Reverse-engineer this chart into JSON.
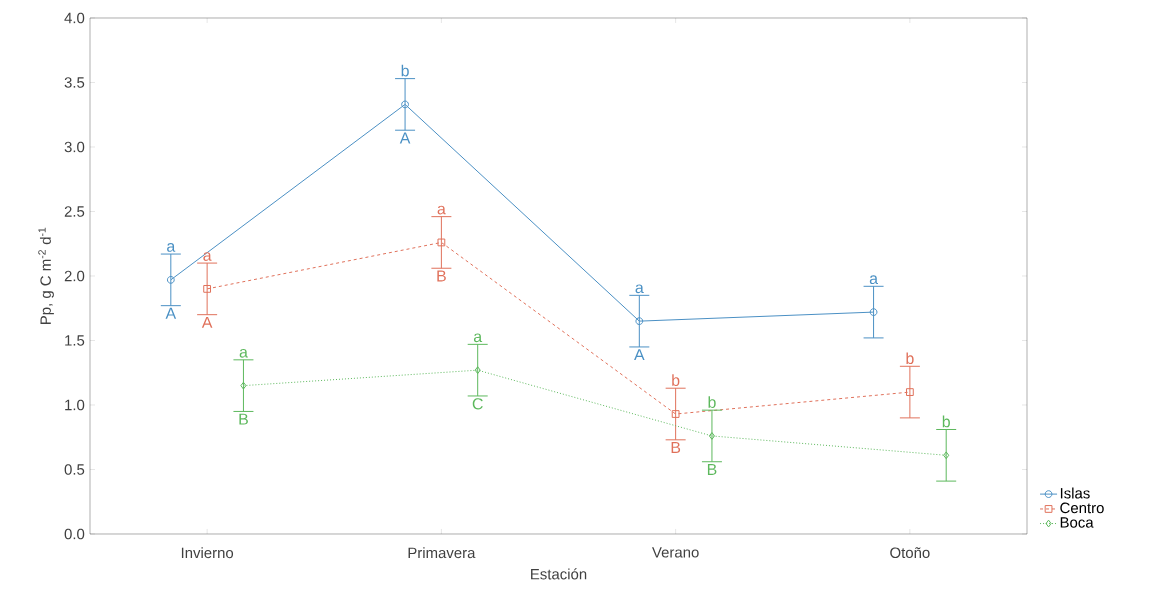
{
  "chart_data": {
    "type": "line",
    "xlabel": "Estación",
    "ylabel": "Pp, g C m$^{-2}$ d$^{-1}$",
    "categories": [
      "Invierno",
      "Primavera",
      "Verano",
      "Otoño"
    ],
    "ylim": [
      0,
      4
    ],
    "yticks": [
      {
        "value": 0,
        "label": "0.0"
      },
      {
        "value": 0.5,
        "label": "0.5"
      },
      {
        "value": 1,
        "label": "1.0"
      },
      {
        "value": 1.5,
        "label": "1.5"
      },
      {
        "value": 2,
        "label": "2.0"
      },
      {
        "value": 2.5,
        "label": "2.5"
      },
      {
        "value": 3,
        "label": "3.0"
      },
      {
        "value": 3.5,
        "label": "3.5"
      },
      {
        "value": 4,
        "label": "4.0"
      }
    ],
    "grid": false,
    "legend": "bottom right",
    "series": [
      {
        "name": "Islas",
        "color": "#4a90c4",
        "marker": "circle",
        "line_style": "solid",
        "values": [
          1.97,
          3.33,
          1.65,
          1.72
        ],
        "errors": [
          0.2,
          0.2,
          0.2,
          0.2
        ]
      },
      {
        "name": "Centro",
        "color": "#e0705a",
        "marker": "square",
        "line_style": "dashed",
        "values": [
          1.9,
          2.26,
          0.93,
          1.1
        ],
        "errors": [
          0.2,
          0.2,
          0.2,
          0.2
        ]
      },
      {
        "name": "Boca",
        "color": "#5cb85c",
        "marker": "diamond",
        "line_style": "dotted",
        "values": [
          1.15,
          1.27,
          0.76,
          0.61
        ],
        "errors": [
          0.2,
          0.2,
          0.2,
          0.2
        ]
      }
    ],
    "annotations": [
      "a",
      "a",
      "a",
      "A",
      "A",
      "B",
      "b",
      "a",
      "a",
      "A",
      "B",
      "C",
      "a",
      "b",
      "b",
      "A",
      "B",
      "B",
      "a",
      "b",
      "b"
    ]
  }
}
